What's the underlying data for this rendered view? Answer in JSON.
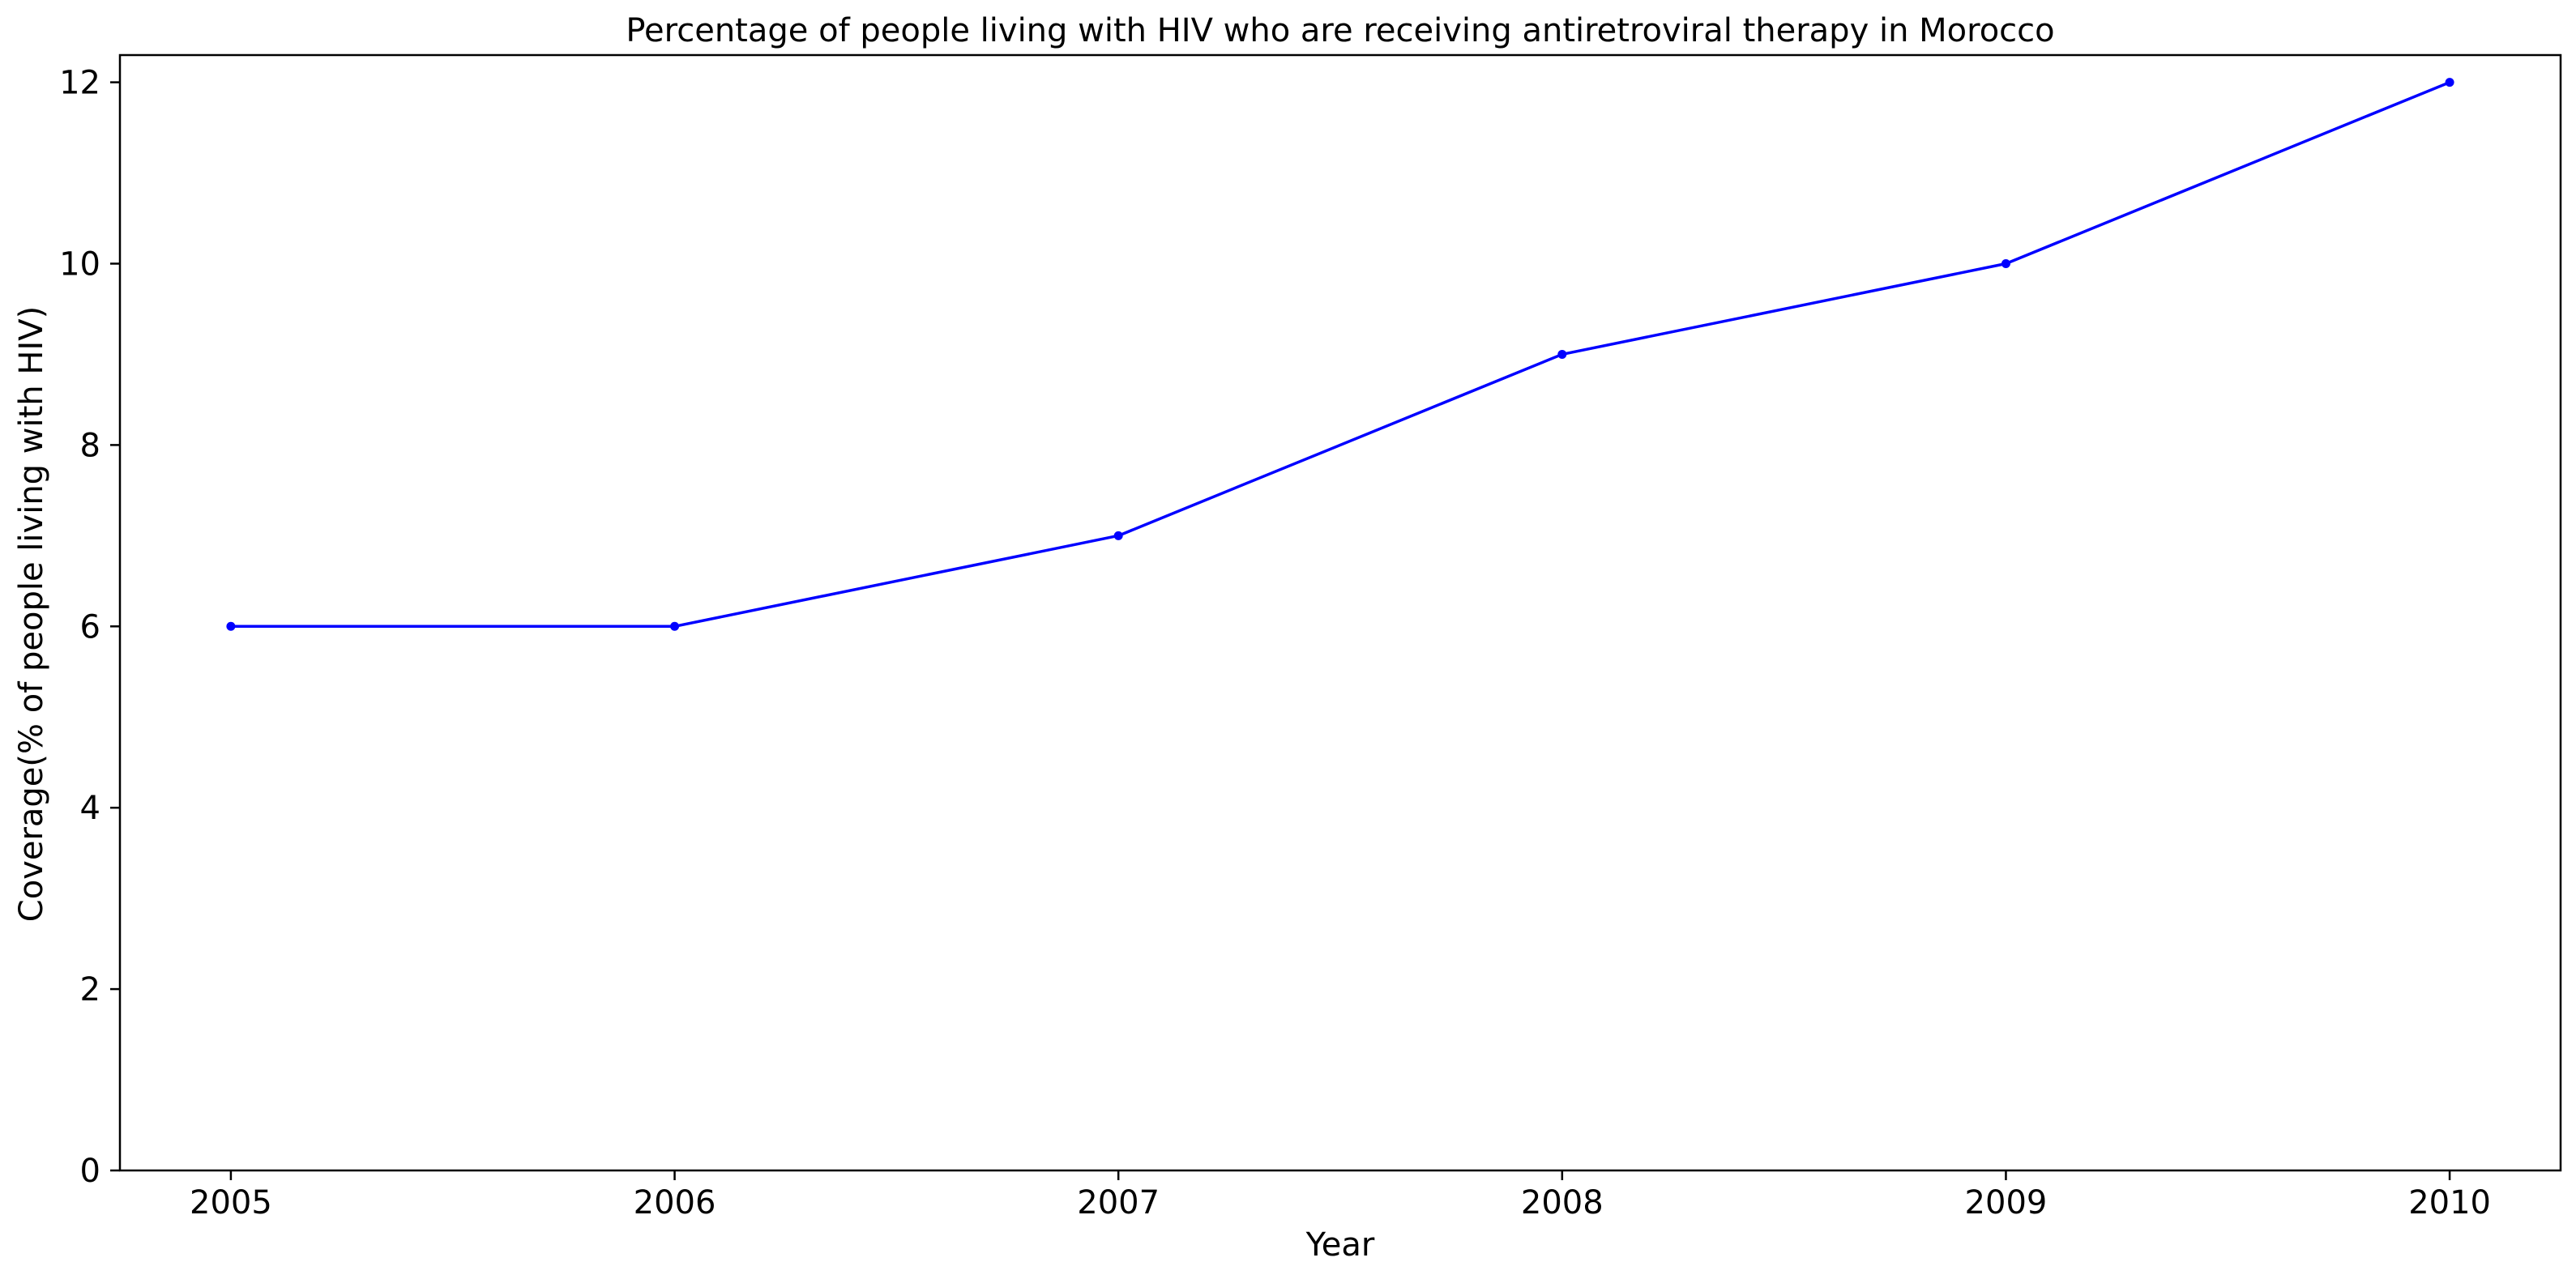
{
  "chart_data": {
    "type": "line",
    "title": "Percentage of people living with HIV who are receiving antiretroviral therapy in Morocco",
    "xlabel": "Year",
    "ylabel": "Coverage(% of people living with HIV)",
    "x": [
      2005,
      2006,
      2007,
      2008,
      2009,
      2010
    ],
    "x_tick_labels": [
      "2005",
      "2006",
      "2007",
      "2008",
      "2009",
      "2010"
    ],
    "y_ticks": [
      0,
      2,
      4,
      6,
      8,
      10,
      12
    ],
    "y_tick_labels": [
      "0",
      "2",
      "4",
      "6",
      "8",
      "10",
      "12"
    ],
    "xlim": [
      2004.75,
      2010.25
    ],
    "ylim": [
      0,
      12.3
    ],
    "grid": false,
    "legend": "none",
    "series": [
      {
        "values": [
          6,
          6,
          7,
          9,
          10,
          12
        ],
        "color": "#0000ff",
        "marker": "dot"
      }
    ]
  }
}
